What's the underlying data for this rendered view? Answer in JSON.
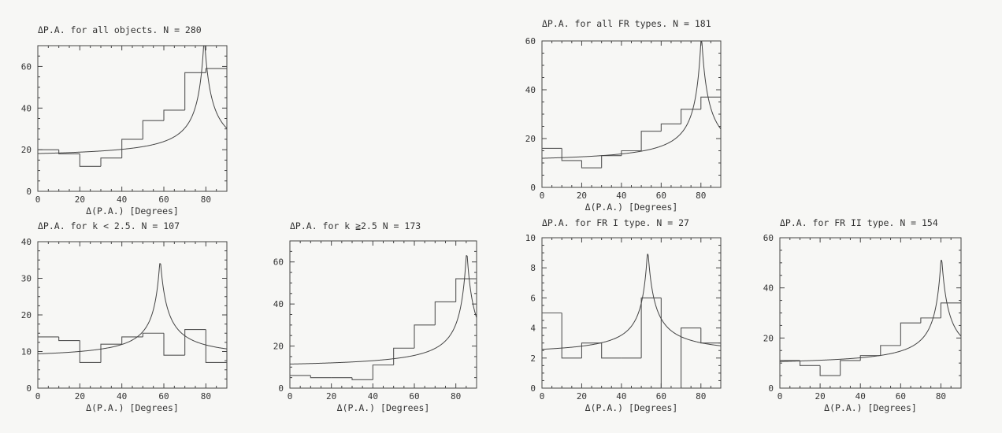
{
  "chart_data": [
    {
      "type": "histogram",
      "title": "ΔP.A. for all objects.  N = 280",
      "xlabel": "Δ(P.A.) [Degrees]",
      "xlim": [
        0,
        90
      ],
      "ylim": [
        0,
        70
      ],
      "xticks": [
        0,
        20,
        40,
        60,
        80
      ],
      "yticks": [
        0,
        20,
        40,
        60
      ],
      "bin_edges": [
        0,
        10,
        20,
        30,
        40,
        50,
        60,
        70,
        80,
        90
      ],
      "values": [
        20,
        18,
        12,
        16,
        25,
        34,
        39,
        57,
        59
      ],
      "model_curve": {
        "peak_x": 79,
        "base": 16,
        "peak": 71
      }
    },
    {
      "type": "histogram",
      "title": "ΔP.A. for all FR types.  N = 181",
      "xlabel": "Δ(P.A.) [Degrees]",
      "xlim": [
        0,
        90
      ],
      "ylim": [
        0,
        60
      ],
      "xticks": [
        0,
        20,
        40,
        60,
        80
      ],
      "yticks": [
        0,
        20,
        40,
        60
      ],
      "bin_edges": [
        0,
        10,
        20,
        30,
        40,
        50,
        60,
        70,
        80,
        90
      ],
      "values": [
        16,
        11,
        8,
        13,
        15,
        23,
        26,
        32,
        37
      ],
      "model_curve": {
        "peak_x": 80,
        "base": 10,
        "peak": 60
      }
    },
    {
      "type": "histogram",
      "title": "ΔP.A. for k < 2.5.  N = 107",
      "xlabel": "Δ(P.A.) [Degrees]",
      "xlim": [
        0,
        90
      ],
      "ylim": [
        0,
        40
      ],
      "xticks": [
        0,
        20,
        40,
        60,
        80
      ],
      "yticks": [
        0,
        10,
        20,
        30,
        40
      ],
      "bin_edges": [
        0,
        10,
        20,
        30,
        40,
        50,
        60,
        70,
        80,
        90
      ],
      "values": [
        14,
        13,
        7,
        12,
        14,
        15,
        9,
        16,
        7
      ],
      "model_curve": {
        "peak_x": 58,
        "base": 8,
        "peak": 34
      }
    },
    {
      "type": "histogram",
      "title": "ΔP.A. for k ≧2.5  N = 173",
      "xlabel": "Δ(P.A.) [Degrees]",
      "xlim": [
        0,
        90
      ],
      "ylim": [
        0,
        70
      ],
      "xticks": [
        0,
        20,
        40,
        60,
        80
      ],
      "yticks": [
        0,
        20,
        40,
        60
      ],
      "bin_edges": [
        0,
        10,
        20,
        30,
        40,
        50,
        60,
        70,
        80,
        90
      ],
      "values": [
        6,
        5,
        5,
        4,
        11,
        19,
        30,
        41,
        52
      ],
      "model_curve": {
        "peak_x": 85,
        "base": 9.5,
        "peak": 63
      }
    },
    {
      "type": "histogram",
      "title": "ΔP.A. for FR I type.  N = 27",
      "xlabel": "Δ(P.A.) [Degrees]",
      "xlim": [
        0,
        90
      ],
      "ylim": [
        0,
        10
      ],
      "xticks": [
        0,
        20,
        40,
        60,
        80
      ],
      "yticks": [
        0,
        2,
        4,
        6,
        8,
        10
      ],
      "bin_edges": [
        0,
        10,
        20,
        30,
        40,
        50,
        60,
        70,
        80,
        90
      ],
      "values": [
        5,
        2,
        3,
        2,
        2,
        6,
        0,
        4,
        3
      ],
      "model_curve": {
        "peak_x": 53,
        "base": 2.2,
        "peak": 8.9
      }
    },
    {
      "type": "histogram",
      "title": "ΔP.A. for FR II type. N = 154",
      "xlabel": "Δ(P.A.) [Degrees]",
      "xlim": [
        0,
        90
      ],
      "ylim": [
        0,
        60
      ],
      "xticks": [
        0,
        20,
        40,
        60,
        80
      ],
      "yticks": [
        0,
        20,
        40,
        60
      ],
      "bin_edges": [
        0,
        10,
        20,
        30,
        40,
        50,
        60,
        70,
        80,
        90
      ],
      "values": [
        11,
        9,
        5,
        11,
        13,
        17,
        26,
        28,
        34
      ],
      "model_curve": {
        "peak_x": 80,
        "base": 9,
        "peak": 51
      }
    }
  ]
}
